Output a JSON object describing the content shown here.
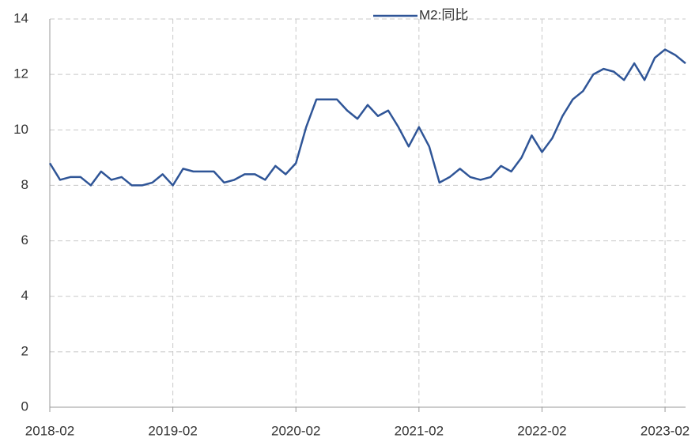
{
  "chart_data": {
    "type": "line",
    "categories": [
      "2018-02",
      null,
      null,
      null,
      null,
      null,
      null,
      null,
      null,
      null,
      null,
      null,
      "2019-02",
      null,
      null,
      null,
      null,
      null,
      null,
      null,
      null,
      null,
      null,
      null,
      "2020-02",
      null,
      null,
      null,
      null,
      null,
      null,
      null,
      null,
      null,
      null,
      null,
      "2021-02",
      null,
      null,
      null,
      null,
      null,
      null,
      null,
      null,
      null,
      null,
      null,
      "2022-02",
      null,
      null,
      null,
      null,
      null,
      null,
      null,
      null,
      null,
      null,
      null,
      "2023-02",
      null,
      null
    ],
    "series": [
      {
        "name": "M2:同比",
        "color": "#2f5597",
        "values": [
          8.8,
          8.2,
          8.3,
          8.3,
          8.0,
          8.5,
          8.2,
          8.3,
          8.0,
          8.0,
          8.1,
          8.4,
          8.0,
          8.6,
          8.5,
          8.5,
          8.5,
          8.1,
          8.2,
          8.4,
          8.4,
          8.2,
          8.7,
          8.4,
          8.8,
          10.1,
          11.1,
          11.1,
          11.1,
          10.7,
          10.4,
          10.9,
          10.5,
          10.7,
          10.1,
          9.4,
          10.1,
          9.4,
          8.1,
          8.3,
          8.6,
          8.3,
          8.2,
          8.3,
          8.7,
          8.5,
          9.0,
          9.8,
          9.2,
          9.7,
          10.5,
          11.1,
          11.4,
          12.0,
          12.2,
          12.1,
          11.8,
          12.4,
          11.8,
          12.6,
          12.9,
          12.7,
          12.4
        ]
      }
    ],
    "ylim": [
      0,
      14
    ],
    "yticks": [
      0,
      2,
      4,
      6,
      8,
      10,
      12,
      14
    ],
    "grid": true,
    "legend": "top"
  }
}
